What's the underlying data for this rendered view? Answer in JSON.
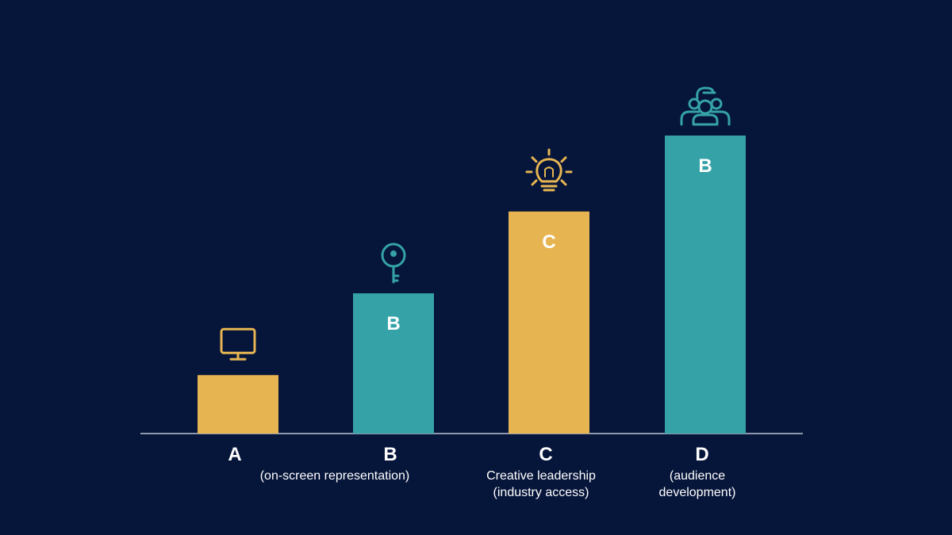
{
  "chart_data": {
    "type": "bar",
    "categories": [
      "A",
      "B",
      "C",
      "D"
    ],
    "values": [
      1,
      2.4,
      3.8,
      5.1
    ],
    "bar_labels": [
      "",
      "B",
      "C",
      "B"
    ],
    "category_sublabels": [
      [],
      [
        "(on-screen representation)"
      ],
      [
        "Creative leadership",
        "(industry access)"
      ],
      [
        "(audience",
        "development)"
      ]
    ],
    "bar_colors": [
      "#e6b551",
      "#35a2a8",
      "#e6b551",
      "#35a2a8"
    ],
    "icons": [
      "monitor-icon",
      "key-icon",
      "lightbulb-icon",
      "audience-group-icon"
    ],
    "icon_colors": [
      "#e6b551",
      "#35a2a8",
      "#e6b551",
      "#35a2a8"
    ],
    "ylim": [
      0,
      5.1
    ],
    "grid": false,
    "legend": "none",
    "background_color": "#06153a",
    "axis_color": "#8d96ad"
  }
}
